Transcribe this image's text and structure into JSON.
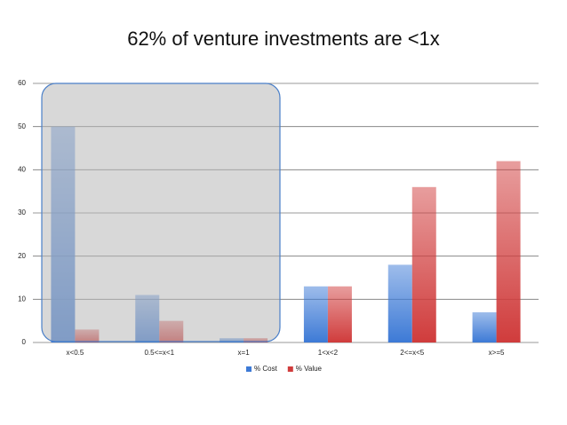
{
  "chart_data": {
    "type": "bar",
    "title": "62% of venture investments are <1x",
    "categories": [
      "x<0.5",
      "0.5<=x<1",
      "x=1",
      "1<x<2",
      "2<=x<5",
      "x>=5"
    ],
    "series": [
      {
        "name": "% Cost",
        "color": "#3d7ad6",
        "values": [
          50,
          11,
          1,
          13,
          18,
          7
        ]
      },
      {
        "name": "% Value",
        "color": "#d03c3c",
        "values": [
          3,
          5,
          1,
          13,
          36,
          42
        ]
      }
    ],
    "ylim": [
      0,
      60
    ],
    "yticks": [
      0,
      10,
      20,
      30,
      40,
      50,
      60
    ],
    "grid": true,
    "legend": "bottom"
  }
}
